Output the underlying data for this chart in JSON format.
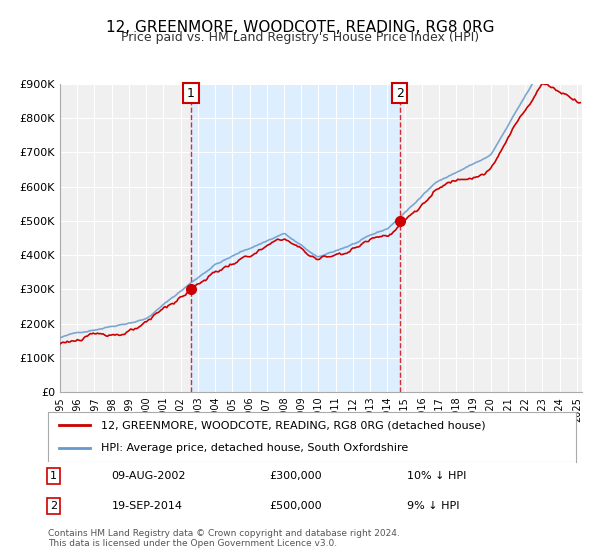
{
  "title": "12, GREENMORE, WOODCOTE, READING, RG8 0RG",
  "subtitle": "Price paid vs. HM Land Registry's House Price Index (HPI)",
  "xlabel": "",
  "ylabel": "",
  "ylim": [
    0,
    900000
  ],
  "yticks": [
    0,
    100000,
    200000,
    300000,
    400000,
    500000,
    600000,
    700000,
    800000,
    900000
  ],
  "ytick_labels": [
    "£0",
    "£100K",
    "£200K",
    "£300K",
    "£400K",
    "£500K",
    "£600K",
    "£700K",
    "£800K",
    "£900K"
  ],
  "xlim_start": 1995.0,
  "xlim_end": 2025.3,
  "sale1_date": 2002.6,
  "sale1_price": 300000,
  "sale1_label": "1",
  "sale1_date_str": "09-AUG-2002",
  "sale1_price_str": "£300,000",
  "sale1_hpi_str": "10% ↓ HPI",
  "sale2_date": 2014.72,
  "sale2_price": 500000,
  "sale2_label": "2",
  "sale2_date_str": "19-SEP-2014",
  "sale2_price_str": "£500,000",
  "sale2_hpi_str": "9% ↓ HPI",
  "hpi_color": "#6699cc",
  "price_color": "#cc0000",
  "dot_color": "#cc0000",
  "bg_color": "#ffffff",
  "plot_bg_color": "#f0f0f0",
  "shaded_region_color": "#ddeeff",
  "grid_color": "#ffffff",
  "legend_label_price": "12, GREENMORE, WOODCOTE, READING, RG8 0RG (detached house)",
  "legend_label_hpi": "HPI: Average price, detached house, South Oxfordshire",
  "footnote1": "Contains HM Land Registry data © Crown copyright and database right 2024.",
  "footnote2": "This data is licensed under the Open Government Licence v3.0."
}
